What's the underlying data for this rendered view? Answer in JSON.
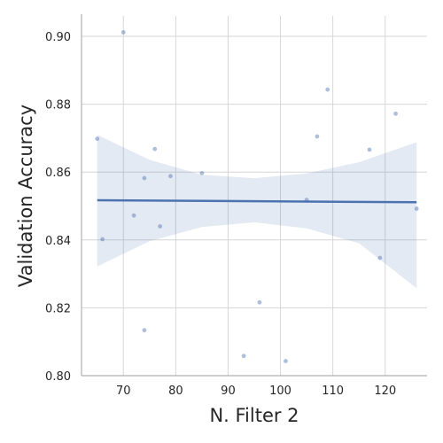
{
  "chart_data": {
    "type": "scatter",
    "title": "",
    "xlabel": "N. Filter 2",
    "ylabel": "Validation Accuracy",
    "xlim": [
      62,
      128
    ],
    "ylim": [
      0.8,
      0.906
    ],
    "x_ticks": [
      70,
      80,
      90,
      100,
      110,
      120
    ],
    "y_ticks": [
      0.8,
      0.82,
      0.84,
      0.86,
      0.88,
      0.9
    ],
    "grid": true,
    "legend": "none",
    "points": [
      {
        "x": 65,
        "y": 0.8698
      },
      {
        "x": 66,
        "y": 0.8402
      },
      {
        "x": 70,
        "y": 0.9012
      },
      {
        "x": 72,
        "y": 0.8472
      },
      {
        "x": 74,
        "y": 0.8582
      },
      {
        "x": 74,
        "y": 0.8134
      },
      {
        "x": 76,
        "y": 0.8668
      },
      {
        "x": 77,
        "y": 0.844
      },
      {
        "x": 79,
        "y": 0.8588
      },
      {
        "x": 85,
        "y": 0.8597
      },
      {
        "x": 93,
        "y": 0.8058
      },
      {
        "x": 96,
        "y": 0.8216
      },
      {
        "x": 101,
        "y": 0.8043
      },
      {
        "x": 105,
        "y": 0.8518
      },
      {
        "x": 107,
        "y": 0.8705
      },
      {
        "x": 109,
        "y": 0.8843
      },
      {
        "x": 117,
        "y": 0.8666
      },
      {
        "x": 119,
        "y": 0.8347
      },
      {
        "x": 122,
        "y": 0.8772
      },
      {
        "x": 126,
        "y": 0.8492
      }
    ],
    "regression": {
      "x": [
        65,
        126
      ],
      "y": [
        0.8517,
        0.8511
      ]
    },
    "confidence_band": {
      "x": [
        65,
        75,
        85,
        95,
        105,
        115,
        126
      ],
      "upper": [
        0.871,
        0.8636,
        0.8592,
        0.8582,
        0.8596,
        0.8629,
        0.8688
      ],
      "lower": [
        0.8322,
        0.8396,
        0.8438,
        0.8452,
        0.8434,
        0.839,
        0.8258
      ]
    },
    "colors": {
      "line": "#4c72b0",
      "points": "#4c72b0",
      "band": "#4c72b0",
      "grid": "#d6d6d6",
      "axis": "#b0b0b0"
    }
  }
}
